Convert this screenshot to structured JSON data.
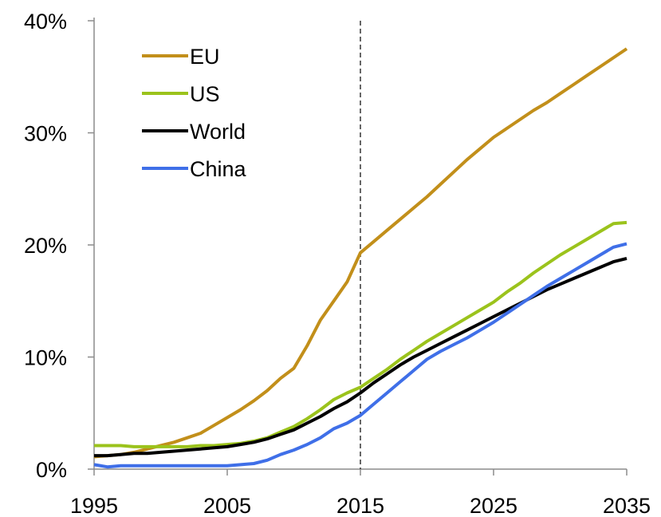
{
  "chart_data": {
    "type": "line",
    "title": "",
    "xlabel": "",
    "ylabel": "",
    "xlim": [
      1995,
      2035
    ],
    "ylim": [
      0,
      40
    ],
    "x_ticks": [
      1995,
      2005,
      2015,
      2025,
      2035
    ],
    "x_tick_labels": [
      "1995",
      "2005",
      "2015",
      "2025",
      "2035"
    ],
    "y_ticks": [
      0,
      10,
      20,
      30,
      40
    ],
    "y_tick_labels": [
      "0%",
      "10%",
      "20%",
      "30%",
      "40%"
    ],
    "grid": false,
    "legend_position": "top-left",
    "reference_line": {
      "x": 2015,
      "style": "dashed",
      "color": "#333333"
    },
    "series": [
      {
        "name": "EU",
        "color": "#C28F1A",
        "points": [
          [
            1995,
            1.1
          ],
          [
            1996,
            1.2
          ],
          [
            1997,
            1.3
          ],
          [
            1998,
            1.5
          ],
          [
            1999,
            1.8
          ],
          [
            2000,
            2.1
          ],
          [
            2001,
            2.4
          ],
          [
            2002,
            2.8
          ],
          [
            2003,
            3.2
          ],
          [
            2004,
            3.9
          ],
          [
            2005,
            4.6
          ],
          [
            2006,
            5.3
          ],
          [
            2007,
            6.1
          ],
          [
            2008,
            7.0
          ],
          [
            2009,
            8.1
          ],
          [
            2010,
            9.0
          ],
          [
            2011,
            11.0
          ],
          [
            2012,
            13.3
          ],
          [
            2013,
            15.0
          ],
          [
            2014,
            16.7
          ],
          [
            2015,
            19.3
          ],
          [
            2016,
            20.3
          ],
          [
            2017,
            21.3
          ],
          [
            2018,
            22.3
          ],
          [
            2019,
            23.3
          ],
          [
            2020,
            24.3
          ],
          [
            2021,
            25.4
          ],
          [
            2022,
            26.5
          ],
          [
            2023,
            27.6
          ],
          [
            2024,
            28.6
          ],
          [
            2025,
            29.6
          ],
          [
            2026,
            30.4
          ],
          [
            2027,
            31.2
          ],
          [
            2028,
            32.0
          ],
          [
            2029,
            32.7
          ],
          [
            2030,
            33.5
          ],
          [
            2031,
            34.3
          ],
          [
            2032,
            35.1
          ],
          [
            2033,
            35.9
          ],
          [
            2034,
            36.7
          ],
          [
            2035,
            37.5
          ]
        ]
      },
      {
        "name": "US",
        "color": "#9BC31C",
        "points": [
          [
            1995,
            2.1
          ],
          [
            1996,
            2.1
          ],
          [
            1997,
            2.1
          ],
          [
            1998,
            2.0
          ],
          [
            1999,
            2.0
          ],
          [
            2000,
            2.0
          ],
          [
            2001,
            2.0
          ],
          [
            2002,
            2.0
          ],
          [
            2003,
            2.1
          ],
          [
            2004,
            2.1
          ],
          [
            2005,
            2.2
          ],
          [
            2006,
            2.3
          ],
          [
            2007,
            2.5
          ],
          [
            2008,
            2.8
          ],
          [
            2009,
            3.3
          ],
          [
            2010,
            3.8
          ],
          [
            2011,
            4.5
          ],
          [
            2012,
            5.3
          ],
          [
            2013,
            6.2
          ],
          [
            2014,
            6.8
          ],
          [
            2015,
            7.3
          ],
          [
            2016,
            8.1
          ],
          [
            2017,
            8.9
          ],
          [
            2018,
            9.8
          ],
          [
            2019,
            10.6
          ],
          [
            2020,
            11.4
          ],
          [
            2021,
            12.1
          ],
          [
            2022,
            12.8
          ],
          [
            2023,
            13.5
          ],
          [
            2024,
            14.2
          ],
          [
            2025,
            14.9
          ],
          [
            2026,
            15.8
          ],
          [
            2027,
            16.6
          ],
          [
            2028,
            17.5
          ],
          [
            2029,
            18.3
          ],
          [
            2030,
            19.1
          ],
          [
            2031,
            19.8
          ],
          [
            2032,
            20.5
          ],
          [
            2033,
            21.2
          ],
          [
            2034,
            21.9
          ],
          [
            2035,
            22.0
          ]
        ]
      },
      {
        "name": "World",
        "color": "#000000",
        "points": [
          [
            1995,
            1.2
          ],
          [
            1996,
            1.2
          ],
          [
            1997,
            1.3
          ],
          [
            1998,
            1.4
          ],
          [
            1999,
            1.4
          ],
          [
            2000,
            1.5
          ],
          [
            2001,
            1.6
          ],
          [
            2002,
            1.7
          ],
          [
            2003,
            1.8
          ],
          [
            2004,
            1.9
          ],
          [
            2005,
            2.0
          ],
          [
            2006,
            2.2
          ],
          [
            2007,
            2.4
          ],
          [
            2008,
            2.7
          ],
          [
            2009,
            3.1
          ],
          [
            2010,
            3.5
          ],
          [
            2011,
            4.1
          ],
          [
            2012,
            4.7
          ],
          [
            2013,
            5.4
          ],
          [
            2014,
            6.0
          ],
          [
            2015,
            6.8
          ],
          [
            2016,
            7.7
          ],
          [
            2017,
            8.5
          ],
          [
            2018,
            9.3
          ],
          [
            2019,
            10.0
          ],
          [
            2020,
            10.6
          ],
          [
            2021,
            11.2
          ],
          [
            2022,
            11.8
          ],
          [
            2023,
            12.4
          ],
          [
            2024,
            13.0
          ],
          [
            2025,
            13.6
          ],
          [
            2026,
            14.2
          ],
          [
            2027,
            14.8
          ],
          [
            2028,
            15.4
          ],
          [
            2029,
            16.0
          ],
          [
            2030,
            16.5
          ],
          [
            2031,
            17.0
          ],
          [
            2032,
            17.5
          ],
          [
            2033,
            18.0
          ],
          [
            2034,
            18.5
          ],
          [
            2035,
            18.8
          ]
        ]
      },
      {
        "name": "China",
        "color": "#3F6FE8",
        "points": [
          [
            1995,
            0.4
          ],
          [
            1996,
            0.2
          ],
          [
            1997,
            0.3
          ],
          [
            1998,
            0.3
          ],
          [
            1999,
            0.3
          ],
          [
            2000,
            0.3
          ],
          [
            2001,
            0.3
          ],
          [
            2002,
            0.3
          ],
          [
            2003,
            0.3
          ],
          [
            2004,
            0.3
          ],
          [
            2005,
            0.3
          ],
          [
            2006,
            0.4
          ],
          [
            2007,
            0.5
          ],
          [
            2008,
            0.8
          ],
          [
            2009,
            1.3
          ],
          [
            2010,
            1.7
          ],
          [
            2011,
            2.2
          ],
          [
            2012,
            2.8
          ],
          [
            2013,
            3.6
          ],
          [
            2014,
            4.1
          ],
          [
            2015,
            4.8
          ],
          [
            2016,
            5.8
          ],
          [
            2017,
            6.8
          ],
          [
            2018,
            7.8
          ],
          [
            2019,
            8.8
          ],
          [
            2020,
            9.8
          ],
          [
            2021,
            10.5
          ],
          [
            2022,
            11.1
          ],
          [
            2023,
            11.7
          ],
          [
            2024,
            12.4
          ],
          [
            2025,
            13.1
          ],
          [
            2026,
            13.9
          ],
          [
            2027,
            14.7
          ],
          [
            2028,
            15.5
          ],
          [
            2029,
            16.3
          ],
          [
            2030,
            17.0
          ],
          [
            2031,
            17.7
          ],
          [
            2032,
            18.4
          ],
          [
            2033,
            19.1
          ],
          [
            2034,
            19.8
          ],
          [
            2035,
            20.1
          ]
        ]
      }
    ]
  }
}
